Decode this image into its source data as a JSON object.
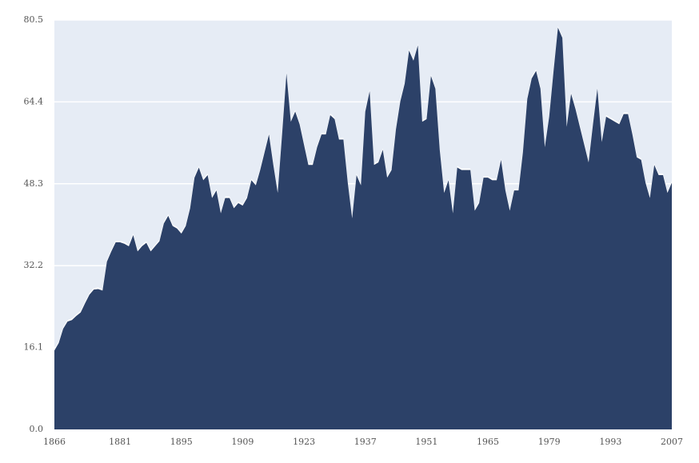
{
  "chart_data": {
    "type": "area",
    "title": "",
    "xlabel": "",
    "ylabel": "",
    "xlim": [
      1866,
      2007
    ],
    "ylim": [
      0,
      80.5
    ],
    "x_ticks": [
      1866,
      1881,
      1895,
      1909,
      1923,
      1937,
      1951,
      1965,
      1979,
      1993,
      2007
    ],
    "x_tick_labels": [
      "1866",
      "1881",
      "1895",
      "1909",
      "1923",
      "1937",
      "1951",
      "1965",
      "1979",
      "1993",
      "2007"
    ],
    "y_ticks": [
      0,
      16.1,
      32.2,
      48.3,
      64.4,
      80.5
    ],
    "y_tick_labels": [
      "0.0",
      "16.1",
      "32.2",
      "48.3",
      "64.4",
      "80.5"
    ],
    "grid": "horizontal",
    "legend": "none",
    "colors": {
      "plot_background": "#e6ecf5",
      "area_fill": "#2c4168",
      "area_edge": "#ffffff",
      "grid": "#ffffff"
    },
    "series": [
      {
        "x": [
          1866,
          1867,
          1868,
          1869,
          1870,
          1871,
          1872,
          1873,
          1874,
          1875,
          1876,
          1877,
          1878,
          1879,
          1880,
          1881,
          1882,
          1883,
          1884,
          1885,
          1886,
          1887,
          1888,
          1889,
          1890,
          1891,
          1892,
          1893,
          1894,
          1895,
          1896,
          1897,
          1898,
          1899,
          1900,
          1901,
          1902,
          1903,
          1904,
          1905,
          1906,
          1907,
          1908,
          1909,
          1910,
          1911,
          1912,
          1913,
          1914,
          1915,
          1916,
          1917,
          1918,
          1919,
          1920,
          1921,
          1922,
          1923,
          1924,
          1925,
          1926,
          1927,
          1928,
          1929,
          1930,
          1931,
          1932,
          1933,
          1934,
          1935,
          1936,
          1937,
          1938,
          1939,
          1940,
          1941,
          1942,
          1943,
          1944,
          1945,
          1946,
          1947,
          1948,
          1949,
          1950,
          1951,
          1952,
          1953,
          1954,
          1955,
          1956,
          1957,
          1958,
          1959,
          1960,
          1961,
          1962,
          1963,
          1964,
          1965,
          1966,
          1967,
          1968,
          1969,
          1970,
          1971,
          1972,
          1973,
          1974,
          1975,
          1976,
          1977,
          1978,
          1979,
          1980,
          1981,
          1982,
          1983,
          1984,
          1985,
          1986,
          1987,
          1988,
          1989,
          1990,
          1991,
          1992,
          1993,
          1994,
          1995,
          1996,
          1997,
          1998,
          1999,
          2000,
          2001,
          2002,
          2003,
          2004,
          2005,
          2006,
          2007
        ],
        "values": [
          15.5,
          17.0,
          19.8,
          21.2,
          21.5,
          22.3,
          23.0,
          24.8,
          26.5,
          27.5,
          27.6,
          27.3,
          33.0,
          35.0,
          36.8,
          36.8,
          36.5,
          36.0,
          38.2,
          35.0,
          36.0,
          36.7,
          35.0,
          36.0,
          37.0,
          40.5,
          42.0,
          40.0,
          39.5,
          38.5,
          40.0,
          43.5,
          49.5,
          51.5,
          49.0,
          50.0,
          45.5,
          47.0,
          42.5,
          45.5,
          45.5,
          43.5,
          44.5,
          44.0,
          45.5,
          49.0,
          48.0,
          51.0,
          54.5,
          58.0,
          52.0,
          46.5,
          58.0,
          70.0,
          60.5,
          62.5,
          60.0,
          56.0,
          52.0,
          52.0,
          55.5,
          58.0,
          58.0,
          61.8,
          61.0,
          57.0,
          57.0,
          48.5,
          41.5,
          50.0,
          48.0,
          62.5,
          66.5,
          52.0,
          52.5,
          55.0,
          49.5,
          51.0,
          59.0,
          64.5,
          68.0,
          74.5,
          72.5,
          75.5,
          60.5,
          61.0,
          69.5,
          67.0,
          55.0,
          46.5,
          49.0,
          42.5,
          51.5,
          51.0,
          51.0,
          51.0,
          43.0,
          44.5,
          49.5,
          49.5,
          49.0,
          49.0,
          53.0,
          47.0,
          43.0,
          47.0,
          47.0,
          54.5,
          65.0,
          69.0,
          70.5,
          67.0,
          55.5,
          61.5,
          70.5,
          79.0,
          77.0,
          59.5,
          66.0,
          63.0,
          59.5,
          56.0,
          52.5,
          60.0,
          67.0,
          56.5,
          61.5,
          61.0,
          60.5,
          60.0,
          62.0,
          62.0,
          58.0,
          53.5,
          53.0,
          48.5,
          45.5,
          52.0,
          50.0,
          50.0,
          46.5,
          48.5
        ]
      }
    ]
  }
}
